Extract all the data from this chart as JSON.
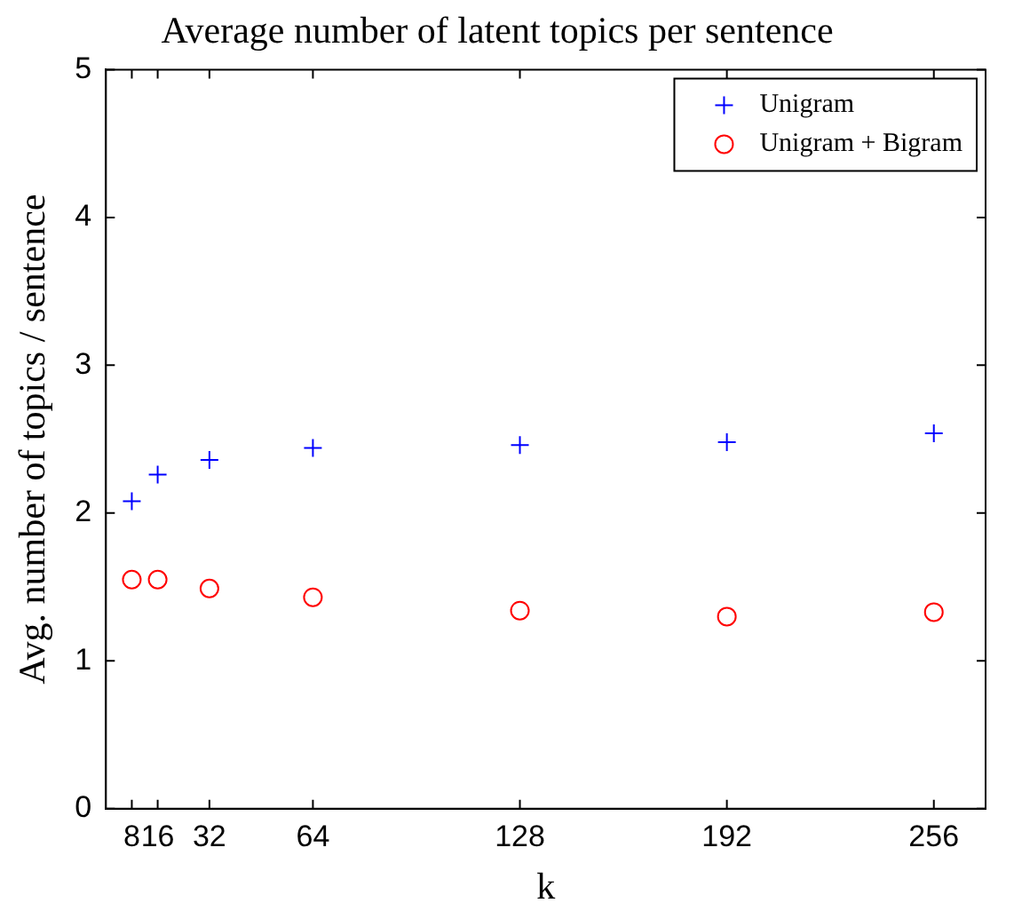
{
  "chart_data": {
    "type": "scatter",
    "title": "Average number of latent topics per sentence",
    "xlabel": "k",
    "ylabel": "Avg. number of topics / sentence",
    "x": [
      8,
      16,
      32,
      64,
      128,
      192,
      256
    ],
    "series": [
      {
        "name": "Unigram",
        "color": "#0000ff",
        "marker": "cross",
        "values": [
          2.08,
          2.26,
          2.36,
          2.44,
          2.46,
          2.48,
          2.54
        ]
      },
      {
        "name": "Unigram + Bigram",
        "color": "#ff0000",
        "marker": "circle",
        "values": [
          1.55,
          1.55,
          1.49,
          1.43,
          1.34,
          1.3,
          1.33
        ]
      }
    ],
    "xlim": [
      0,
      272
    ],
    "xticks": [
      8,
      16,
      32,
      64,
      128,
      192,
      256
    ],
    "ylim": [
      0,
      5
    ],
    "yticks": [
      0,
      1,
      2,
      3,
      4,
      5
    ],
    "grid": false,
    "legend": "top right"
  }
}
